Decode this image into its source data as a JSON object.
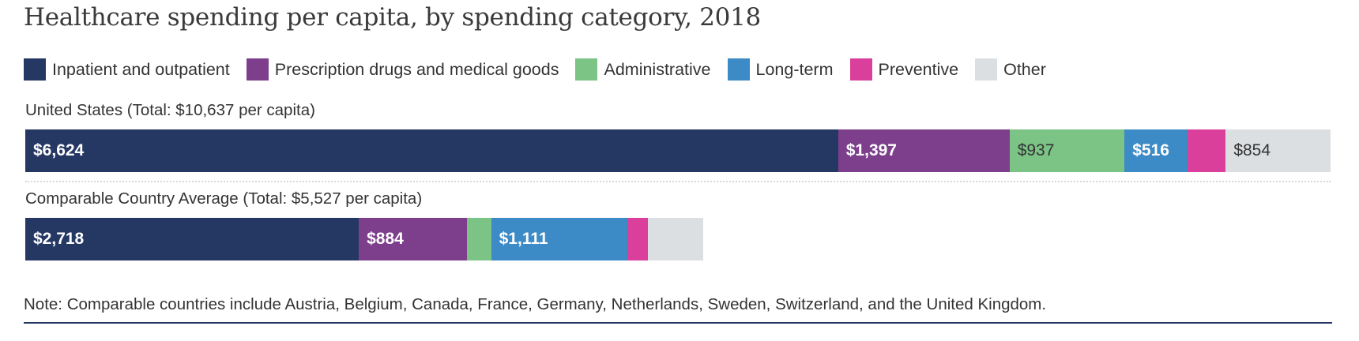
{
  "chart_data": {
    "type": "bar",
    "orientation": "horizontal-stacked",
    "title": "Healthcare spending per capita, by spending category, 2018",
    "xlabel": "",
    "ylabel": "",
    "grid": false,
    "legend_position": "top-left",
    "categories": [
      "United States",
      "Comparable Country Average"
    ],
    "row_labels": [
      "United States (Total: $10,637 per capita)",
      "Comparable Country Average (Total: $5,527 per capita)"
    ],
    "totals": [
      10637,
      5527
    ],
    "scale_max": 10637,
    "series": [
      {
        "name": "Inpatient and outpatient",
        "color": "#253763",
        "text_color": "#ffffff",
        "values": [
          6624,
          2718
        ],
        "labels": [
          "$6,624",
          "$2,718"
        ]
      },
      {
        "name": "Prescription drugs and medical goods",
        "color": "#7d3f8c",
        "text_color": "#ffffff",
        "values": [
          1397,
          884
        ],
        "labels": [
          "$1,397",
          "$884"
        ]
      },
      {
        "name": "Administrative",
        "color": "#7cc386",
        "text_color": "#333333",
        "values": [
          937,
          195
        ],
        "labels": [
          "$937",
          ""
        ]
      },
      {
        "name": "Long-term",
        "color": "#3c8ac6",
        "text_color": "#ffffff",
        "values": [
          516,
          1111
        ],
        "labels": [
          "$516",
          "$1,111"
        ]
      },
      {
        "name": "Preventive",
        "color": "#d93f9b",
        "text_color": "#ffffff",
        "values": [
          309,
          167
        ],
        "labels": [
          "",
          ""
        ]
      },
      {
        "name": "Other",
        "color": "#dcdfe2",
        "text_color": "#333333",
        "values": [
          854,
          452
        ],
        "labels": [
          "$854",
          ""
        ]
      }
    ]
  },
  "note": "Note: Comparable countries include Austria, Belgium, Canada, France, Germany, Netherlands, Sweden, Switzerland, and the United Kingdom.",
  "colors": {
    "rule": "#253763",
    "text": "#333333"
  }
}
